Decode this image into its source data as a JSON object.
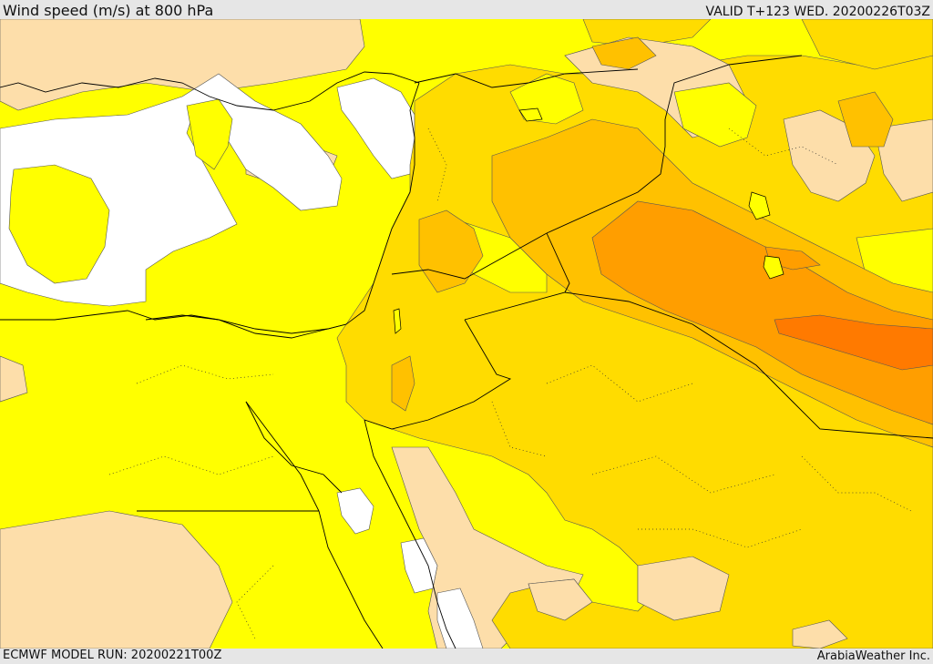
{
  "header": {
    "title": "Wind speed (m/s) at 800 hPa",
    "valid": "VALID T+123 WED. 20200226T03Z"
  },
  "footer": {
    "model_run": "ECMWF MODEL RUN: 20200221T00Z",
    "credit": "ArabiaWeather Inc."
  },
  "map": {
    "type": "wind-speed-shaded-map",
    "colors": {
      "white": "#ffffff",
      "tan": "#fddeaa",
      "yellow": "#ffff00",
      "gold": "#ffdc00",
      "amber": "#ffc100",
      "orange": "#ff9e00",
      "deep_orange": "#ff7a00"
    }
  }
}
